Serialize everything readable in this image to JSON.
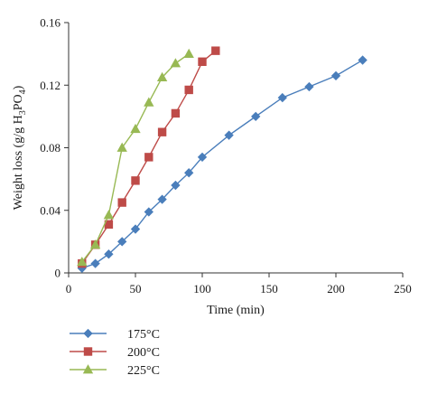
{
  "chart_data": {
    "type": "line",
    "xlabel": "Time (min)",
    "ylabel_parts": [
      "Weight loss (g/g H",
      "3",
      "PO",
      "4",
      ")"
    ],
    "xlim": [
      0,
      250
    ],
    "ylim": [
      0,
      0.16
    ],
    "x_ticks": [
      "0",
      "50",
      "100",
      "150",
      "200",
      "250"
    ],
    "y_ticks": [
      "0",
      "0.04",
      "0.08",
      "0.12",
      "0.16"
    ],
    "grid": false,
    "legend_position": "bottom-left",
    "series": [
      {
        "name": "175°C",
        "color": "#4a7ebb",
        "marker": "diamond",
        "x": [
          10,
          20,
          30,
          40,
          50,
          60,
          70,
          80,
          90,
          100,
          120,
          140,
          160,
          180,
          200,
          220
        ],
        "y": [
          0.003,
          0.006,
          0.012,
          0.02,
          0.028,
          0.039,
          0.047,
          0.056,
          0.064,
          0.074,
          0.088,
          0.1,
          0.112,
          0.119,
          0.126,
          0.136
        ]
      },
      {
        "name": "200°C",
        "color": "#be4b48",
        "marker": "square",
        "x": [
          10,
          20,
          30,
          40,
          50,
          60,
          70,
          80,
          90,
          100,
          110
        ],
        "y": [
          0.006,
          0.018,
          0.031,
          0.045,
          0.059,
          0.074,
          0.09,
          0.102,
          0.117,
          0.135,
          0.142
        ]
      },
      {
        "name": "225°C",
        "color": "#98b954",
        "marker": "triangle",
        "x": [
          10,
          20,
          30,
          40,
          50,
          60,
          70,
          80,
          90
        ],
        "y": [
          0.007,
          0.018,
          0.037,
          0.08,
          0.092,
          0.109,
          0.125,
          0.134,
          0.14
        ]
      }
    ]
  }
}
